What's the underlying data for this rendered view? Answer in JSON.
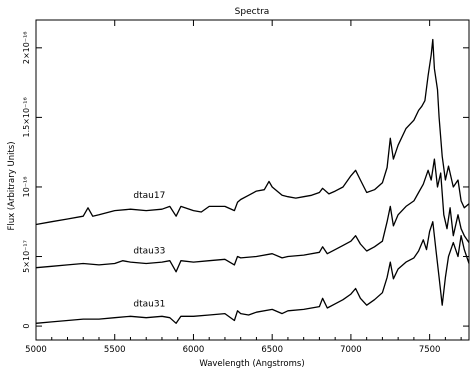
{
  "chart_data": {
    "type": "line",
    "title": "Spectra",
    "xlabel": "Wavelength (Angstroms)",
    "ylabel": "Flux (Arbitrary Units)",
    "xlim": [
      5000,
      7750
    ],
    "ylim": [
      -1e-17,
      2.2e-16
    ],
    "x_ticks": [
      {
        "value": 5000,
        "label": "5000"
      },
      {
        "value": 5500,
        "label": "5500"
      },
      {
        "value": 6000,
        "label": "6000"
      },
      {
        "value": 6500,
        "label": "6500"
      },
      {
        "value": 7000,
        "label": "7000"
      },
      {
        "value": 7500,
        "label": "7500"
      }
    ],
    "y_ticks": [
      {
        "value": 0,
        "label": "0"
      },
      {
        "value": 5e-17,
        "label": "5×10⁻¹⁷"
      },
      {
        "value": 1e-16,
        "label": "10⁻¹⁶"
      },
      {
        "value": 1.5e-16,
        "label": "1.5×10⁻¹⁶"
      },
      {
        "value": 2e-16,
        "label": "2×10⁻¹⁶"
      }
    ],
    "grid": false,
    "series": [
      {
        "name": "dtau17",
        "label_at": [
          5720,
          9.2e-17
        ],
        "points": [
          [
            5000,
            7.3e-17
          ],
          [
            5100,
            7.5e-17
          ],
          [
            5200,
            7.7e-17
          ],
          [
            5300,
            7.9e-17
          ],
          [
            5330,
            8.5e-17
          ],
          [
            5360,
            7.9e-17
          ],
          [
            5400,
            8e-17
          ],
          [
            5500,
            8.3e-17
          ],
          [
            5600,
            8.4e-17
          ],
          [
            5700,
            8.3e-17
          ],
          [
            5800,
            8.4e-17
          ],
          [
            5850,
            8.6e-17
          ],
          [
            5890,
            7.9e-17
          ],
          [
            5920,
            8.6e-17
          ],
          [
            6000,
            8.3e-17
          ],
          [
            6050,
            8.2e-17
          ],
          [
            6100,
            8.6e-17
          ],
          [
            6200,
            8.6e-17
          ],
          [
            6260,
            8.3e-17
          ],
          [
            6280,
            8.9e-17
          ],
          [
            6300,
            9.1e-17
          ],
          [
            6350,
            9.4e-17
          ],
          [
            6400,
            9.7e-17
          ],
          [
            6450,
            9.8e-17
          ],
          [
            6480,
            1.04e-16
          ],
          [
            6500,
            1e-16
          ],
          [
            6563,
            9.4e-17
          ],
          [
            6600,
            9.3e-17
          ],
          [
            6650,
            9.2e-17
          ],
          [
            6700,
            9.3e-17
          ],
          [
            6750,
            9.4e-17
          ],
          [
            6800,
            9.6e-17
          ],
          [
            6820,
            9.9e-17
          ],
          [
            6860,
            9.5e-17
          ],
          [
            6900,
            9.7e-17
          ],
          [
            6950,
            1e-16
          ],
          [
            7000,
            1.08e-16
          ],
          [
            7030,
            1.12e-16
          ],
          [
            7060,
            1.05e-16
          ],
          [
            7100,
            9.6e-17
          ],
          [
            7150,
            9.8e-17
          ],
          [
            7200,
            1.03e-16
          ],
          [
            7230,
            1.14e-16
          ],
          [
            7250,
            1.35e-16
          ],
          [
            7270,
            1.2e-16
          ],
          [
            7300,
            1.3e-16
          ],
          [
            7350,
            1.42e-16
          ],
          [
            7400,
            1.48e-16
          ],
          [
            7430,
            1.55e-16
          ],
          [
            7450,
            1.58e-16
          ],
          [
            7470,
            1.62e-16
          ],
          [
            7490,
            1.8e-16
          ],
          [
            7510,
            1.95e-16
          ],
          [
            7520,
            2.06e-16
          ],
          [
            7530,
            1.85e-16
          ],
          [
            7550,
            1.7e-16
          ],
          [
            7560,
            1.5e-16
          ],
          [
            7580,
            1.22e-16
          ],
          [
            7600,
            1.05e-16
          ],
          [
            7620,
            1.15e-16
          ],
          [
            7650,
            1e-16
          ],
          [
            7680,
            1.05e-16
          ],
          [
            7700,
            9e-17
          ],
          [
            7720,
            8.5e-17
          ],
          [
            7750,
            8.8e-17
          ]
        ]
      },
      {
        "name": "dtau33",
        "label_at": [
          5720,
          5.2e-17
        ],
        "points": [
          [
            5000,
            4.2e-17
          ],
          [
            5100,
            4.3e-17
          ],
          [
            5200,
            4.4e-17
          ],
          [
            5300,
            4.5e-17
          ],
          [
            5400,
            4.4e-17
          ],
          [
            5500,
            4.5e-17
          ],
          [
            5550,
            4.7e-17
          ],
          [
            5600,
            4.6e-17
          ],
          [
            5700,
            4.5e-17
          ],
          [
            5800,
            4.6e-17
          ],
          [
            5850,
            4.7e-17
          ],
          [
            5890,
            3.9e-17
          ],
          [
            5920,
            4.7e-17
          ],
          [
            6000,
            4.6e-17
          ],
          [
            6100,
            4.7e-17
          ],
          [
            6200,
            4.8e-17
          ],
          [
            6260,
            4.4e-17
          ],
          [
            6280,
            5e-17
          ],
          [
            6300,
            4.9e-17
          ],
          [
            6400,
            5e-17
          ],
          [
            6500,
            5.2e-17
          ],
          [
            6563,
            4.9e-17
          ],
          [
            6600,
            5e-17
          ],
          [
            6700,
            5.1e-17
          ],
          [
            6800,
            5.3e-17
          ],
          [
            6820,
            5.7e-17
          ],
          [
            6850,
            5.2e-17
          ],
          [
            6900,
            5.5e-17
          ],
          [
            6950,
            5.8e-17
          ],
          [
            7000,
            6.1e-17
          ],
          [
            7030,
            6.5e-17
          ],
          [
            7060,
            5.9e-17
          ],
          [
            7100,
            5.4e-17
          ],
          [
            7150,
            5.7e-17
          ],
          [
            7200,
            6.1e-17
          ],
          [
            7230,
            7.5e-17
          ],
          [
            7250,
            8.6e-17
          ],
          [
            7270,
            7.2e-17
          ],
          [
            7300,
            8e-17
          ],
          [
            7350,
            8.6e-17
          ],
          [
            7400,
            9e-17
          ],
          [
            7430,
            9.6e-17
          ],
          [
            7460,
            1.02e-16
          ],
          [
            7490,
            1.12e-16
          ],
          [
            7510,
            1.05e-16
          ],
          [
            7530,
            1.2e-16
          ],
          [
            7550,
            1e-16
          ],
          [
            7570,
            1.1e-16
          ],
          [
            7590,
            8e-17
          ],
          [
            7610,
            7e-17
          ],
          [
            7630,
            8.5e-17
          ],
          [
            7650,
            6.5e-17
          ],
          [
            7680,
            8e-17
          ],
          [
            7700,
            7e-17
          ],
          [
            7720,
            6.5e-17
          ],
          [
            7750,
            6e-17
          ]
        ]
      },
      {
        "name": "dtau31",
        "label_at": [
          5720,
          1.4e-17
        ],
        "points": [
          [
            5000,
            2e-18
          ],
          [
            5100,
            3e-18
          ],
          [
            5200,
            4e-18
          ],
          [
            5300,
            5e-18
          ],
          [
            5400,
            5e-18
          ],
          [
            5500,
            6e-18
          ],
          [
            5600,
            7e-18
          ],
          [
            5700,
            6e-18
          ],
          [
            5800,
            7e-18
          ],
          [
            5850,
            6e-18
          ],
          [
            5890,
            2e-18
          ],
          [
            5920,
            7e-18
          ],
          [
            6000,
            7e-18
          ],
          [
            6100,
            8e-18
          ],
          [
            6200,
            9e-18
          ],
          [
            6260,
            4e-18
          ],
          [
            6280,
            1.1e-17
          ],
          [
            6300,
            9e-18
          ],
          [
            6350,
            8e-18
          ],
          [
            6400,
            1e-17
          ],
          [
            6500,
            1.2e-17
          ],
          [
            6563,
            9e-18
          ],
          [
            6600,
            1.1e-17
          ],
          [
            6700,
            1.2e-17
          ],
          [
            6800,
            1.4e-17
          ],
          [
            6820,
            2e-17
          ],
          [
            6850,
            1.3e-17
          ],
          [
            6900,
            1.6e-17
          ],
          [
            6950,
            1.9e-17
          ],
          [
            7000,
            2.3e-17
          ],
          [
            7030,
            2.7e-17
          ],
          [
            7060,
            2e-17
          ],
          [
            7100,
            1.5e-17
          ],
          [
            7150,
            1.9e-17
          ],
          [
            7200,
            2.4e-17
          ],
          [
            7230,
            3.5e-17
          ],
          [
            7250,
            4.6e-17
          ],
          [
            7270,
            3.4e-17
          ],
          [
            7300,
            4.1e-17
          ],
          [
            7350,
            4.6e-17
          ],
          [
            7400,
            4.9e-17
          ],
          [
            7430,
            5.4e-17
          ],
          [
            7460,
            6.2e-17
          ],
          [
            7480,
            5.5e-17
          ],
          [
            7500,
            6.8e-17
          ],
          [
            7520,
            7.5e-17
          ],
          [
            7540,
            5.5e-17
          ],
          [
            7560,
            3.5e-17
          ],
          [
            7580,
            1.5e-17
          ],
          [
            7600,
            3.5e-17
          ],
          [
            7620,
            5e-17
          ],
          [
            7650,
            6e-17
          ],
          [
            7680,
            5e-17
          ],
          [
            7700,
            6.5e-17
          ],
          [
            7720,
            5.5e-17
          ],
          [
            7750,
            4.5e-17
          ]
        ]
      }
    ]
  }
}
